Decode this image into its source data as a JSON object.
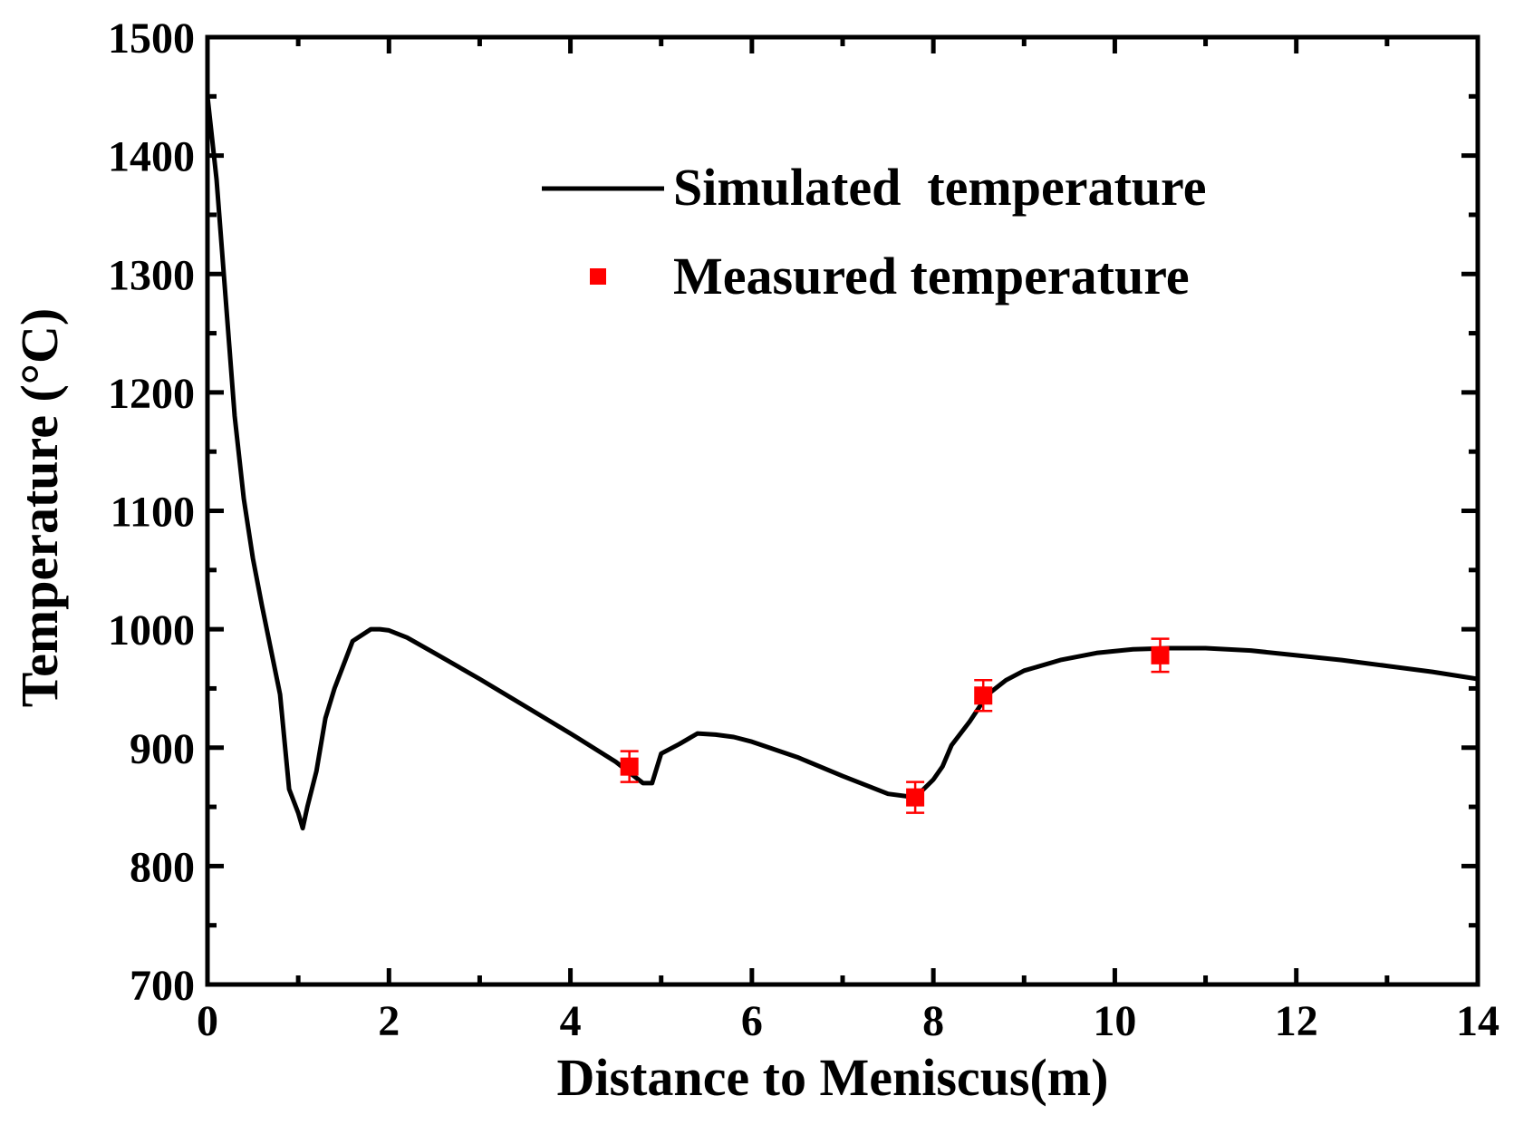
{
  "chart_data": {
    "type": "line",
    "title": "",
    "xlabel": "Distance to Meniscus(m)",
    "ylabel": "Temperature (°C)",
    "xlim": [
      0,
      14
    ],
    "ylim": [
      700,
      1500
    ],
    "x_ticks": [
      0,
      2,
      4,
      6,
      8,
      10,
      12,
      14
    ],
    "x_tick_labels": [
      "0",
      "2",
      "4",
      "6",
      "8",
      "10",
      "12",
      "14"
    ],
    "y_ticks": [
      700,
      800,
      900,
      1000,
      1100,
      1200,
      1300,
      1400,
      1500
    ],
    "y_tick_labels": [
      "700",
      "800",
      "900",
      "1000",
      "1100",
      "1200",
      "1300",
      "1400",
      "1500"
    ],
    "grid": false,
    "legend_position": "top-right",
    "series": [
      {
        "name": "Simulated  temperature",
        "kind": "line",
        "color": "#000000",
        "x": [
          0,
          0.1,
          0.2,
          0.3,
          0.4,
          0.5,
          0.6,
          0.8,
          0.9,
          1.0,
          1.05,
          1.1,
          1.2,
          1.3,
          1.4,
          1.5,
          1.6,
          1.8,
          1.9,
          2.0,
          2.2,
          2.5,
          3.0,
          3.5,
          4.0,
          4.5,
          4.8,
          4.9,
          5.0,
          5.2,
          5.4,
          5.6,
          5.8,
          6.0,
          6.5,
          7.0,
          7.5,
          7.8,
          8.0,
          8.1,
          8.2,
          8.4,
          8.6,
          8.8,
          9.0,
          9.4,
          9.8,
          10.2,
          10.6,
          11.0,
          11.5,
          12.0,
          12.5,
          13.0,
          13.5,
          14.0
        ],
        "y": [
          1450,
          1380,
          1280,
          1180,
          1110,
          1060,
          1020,
          945,
          865,
          845,
          832,
          850,
          880,
          925,
          950,
          970,
          990,
          1000,
          1000,
          999,
          993,
          980,
          958,
          935,
          912,
          888,
          870,
          870,
          895,
          903,
          912,
          911,
          909,
          905,
          892,
          876,
          861,
          858,
          873,
          884,
          902,
          922,
          945,
          957,
          965,
          974,
          980,
          983,
          984,
          984,
          982,
          978,
          974,
          969,
          964,
          958
        ]
      },
      {
        "name": "Measured temperature",
        "kind": "scatter",
        "color": "#ff0000",
        "x": [
          4.65,
          7.8,
          8.55,
          10.5
        ],
        "y": [
          884,
          858,
          944,
          978
        ],
        "error": [
          13,
          13,
          13,
          14
        ]
      }
    ]
  }
}
